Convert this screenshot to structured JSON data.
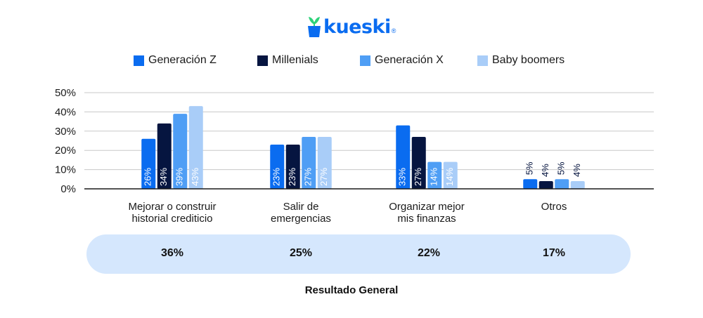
{
  "brand": {
    "name": "kueski",
    "mark": "®",
    "icon": "plant-pot-icon",
    "color": "#0a6cf0"
  },
  "legend": [
    {
      "label": "Generación Z",
      "color": "#0a6cf0"
    },
    {
      "label": "Millenials",
      "color": "#061540"
    },
    {
      "label": "Generación X",
      "color": "#4f9ef5"
    },
    {
      "label": "Baby boomers",
      "color": "#a9cdf8"
    }
  ],
  "chart_data": {
    "type": "bar",
    "categories": [
      [
        "Mejorar o construir",
        "historial crediticio"
      ],
      [
        "Salir de",
        "emergencias"
      ],
      [
        "Organizar mejor",
        "mis finanzas"
      ],
      [
        "Otros"
      ]
    ],
    "series": [
      {
        "name": "Generación Z",
        "values": [
          26,
          23,
          33,
          5
        ],
        "labels": [
          "26%",
          "23%",
          "33%",
          "5%"
        ]
      },
      {
        "name": "Millenials",
        "values": [
          34,
          23,
          27,
          4
        ],
        "labels": [
          "34%",
          "23%",
          "27%",
          "4%"
        ]
      },
      {
        "name": "Generación X",
        "values": [
          39,
          27,
          14,
          5
        ],
        "labels": [
          "39%",
          "27%",
          "14%",
          "5%"
        ]
      },
      {
        "name": "Baby boomers",
        "values": [
          43,
          27,
          14,
          4
        ],
        "labels": [
          "43%",
          "27%",
          "14%",
          "4%"
        ]
      }
    ],
    "ylim": [
      0,
      50
    ],
    "yticks": [
      "0%",
      "10%",
      "20%",
      "30%",
      "40%",
      "50%"
    ],
    "grid": true,
    "legend_position": "top"
  },
  "summary": {
    "values": [
      "36%",
      "25%",
      "22%",
      "17%"
    ],
    "title": "Resultado General"
  }
}
